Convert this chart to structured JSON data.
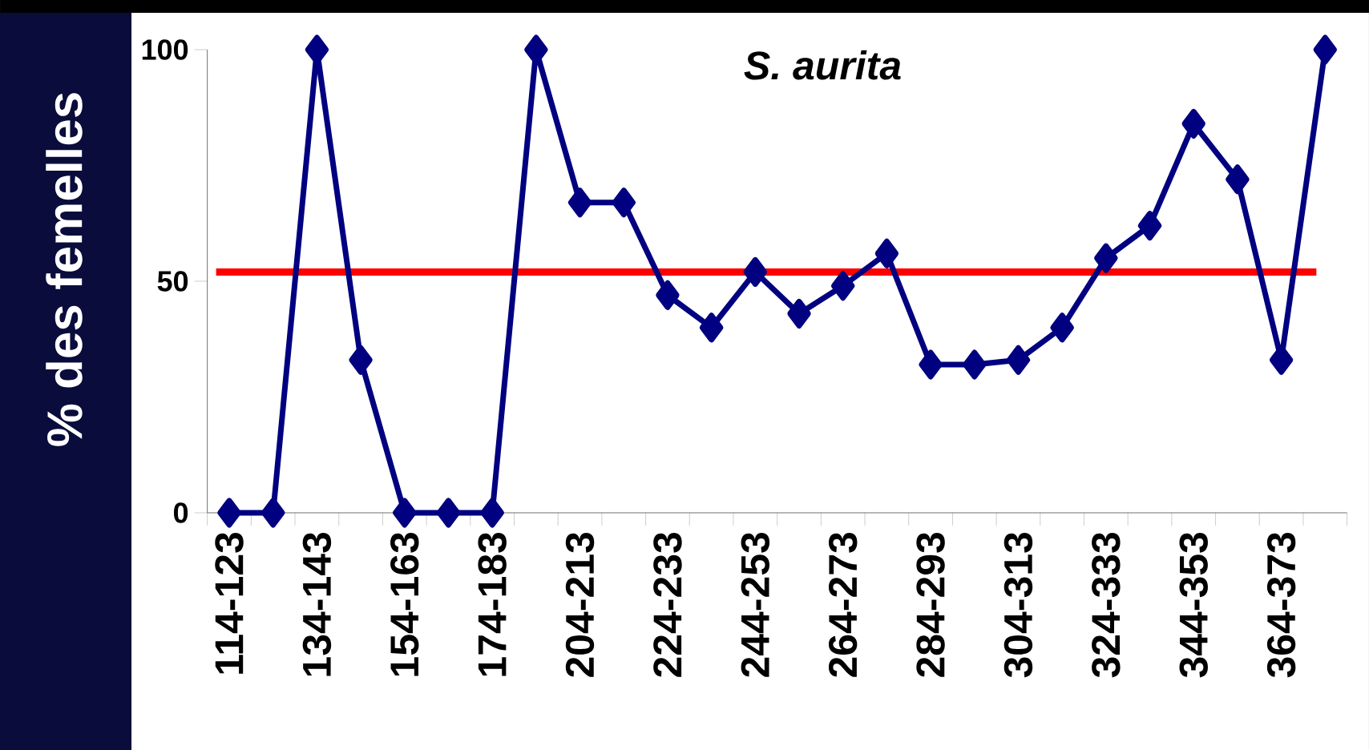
{
  "chart_data": {
    "type": "line",
    "title": "S. aurita",
    "ylabel": "% des femelles",
    "categories": [
      "114-123",
      null,
      "134-143",
      null,
      "154-163",
      null,
      "174-183",
      null,
      "204-213",
      null,
      "224-233",
      null,
      "244-253",
      null,
      "264-273",
      null,
      "284-293",
      null,
      "304-313",
      null,
      "324-333",
      null,
      "344-353",
      null,
      "364-373",
      null
    ],
    "series": [
      {
        "color": "#000080",
        "values": [
          0,
          0,
          100,
          33,
          0,
          0,
          0,
          100,
          67,
          67,
          47,
          40,
          52,
          43,
          49,
          56,
          32,
          32,
          33,
          40,
          55,
          62,
          84,
          72,
          33,
          100
        ]
      }
    ],
    "ylim": [
      0,
      100
    ],
    "yticks": [
      0,
      50,
      100
    ],
    "grid": false,
    "marker": "diamond",
    "line_style": "solid",
    "ref_lines": [
      {
        "axis": "y",
        "value": 52,
        "color": "#ff0000"
      }
    ]
  }
}
